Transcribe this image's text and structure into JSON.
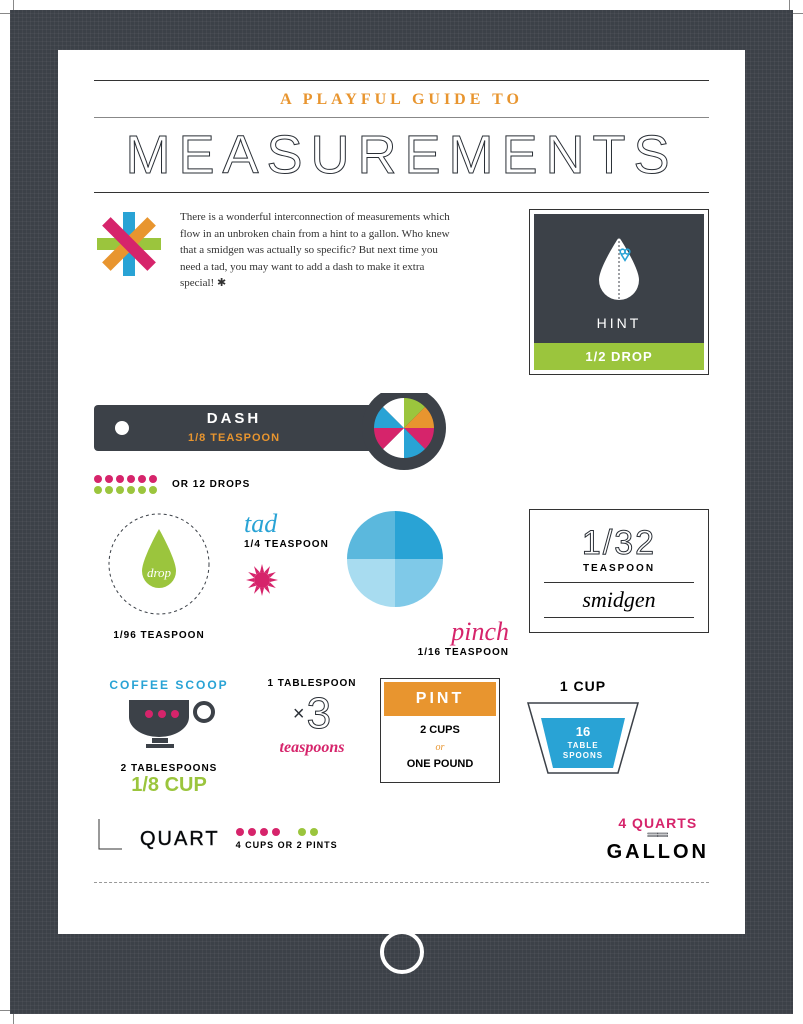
{
  "colors": {
    "charcoal": "#3c4148",
    "orange": "#e8952f",
    "lime": "#9bc53d",
    "cyan": "#29a3d5",
    "magenta": "#d6246b",
    "white": "#ffffff"
  },
  "header": {
    "subtitle": "A PLAYFUL GUIDE TO",
    "title": "MEASUREMENTS"
  },
  "intro": "There is a wonderful interconnection of measurements which flow in an unbroken chain from a hint to a gallon. Who knew that a smidgen was actually so specific? But next time you need a tad, you may want to add a dash to make it extra special! ✱",
  "hint": {
    "label": "HINT",
    "value": "1/2 DROP"
  },
  "dash": {
    "label": "DASH",
    "value": "1/8 TEASPOON",
    "drops_label": "OR 12 DROPS",
    "drops_count": 12,
    "dot_colors": [
      "#d6246b",
      "#d6246b",
      "#d6246b",
      "#d6246b",
      "#d6246b",
      "#d6246b",
      "#9bc53d",
      "#9bc53d",
      "#9bc53d",
      "#9bc53d",
      "#9bc53d",
      "#9bc53d"
    ]
  },
  "drop": {
    "label": "drop",
    "value": "1/96 TEASPOON"
  },
  "tad": {
    "label": "tad",
    "value": "1/4 TEASPOON"
  },
  "pinch": {
    "label": "pinch",
    "value": "1/16 TEASPOON"
  },
  "smidgen": {
    "fraction": "1/32",
    "unit": "TEASPOON",
    "label": "smidgen"
  },
  "coffee": {
    "title": "COFFEE SCOOP",
    "line1": "2 TABLESPOONS",
    "line2": "1/8 CUP"
  },
  "x3": {
    "top": "1 TABLESPOON",
    "big": "3",
    "x": "×",
    "word": "teaspoons"
  },
  "pint": {
    "title": "PINT",
    "line1": "2 CUPS",
    "or": "or",
    "line2": "ONE POUND"
  },
  "cup": {
    "title": "1 CUP",
    "value": "16",
    "unit1": "TABLE",
    "unit2": "SPOONS"
  },
  "quart": {
    "label": "QUART",
    "caption": "4 CUPS OR 2 PINTS",
    "dot_colors": [
      "#d6246b",
      "#d6246b",
      "#d6246b",
      "#d6246b",
      "#9bc53d",
      "#9bc53d"
    ]
  },
  "gallon": {
    "top": "4 QUARTS",
    "word": "GALLON"
  }
}
